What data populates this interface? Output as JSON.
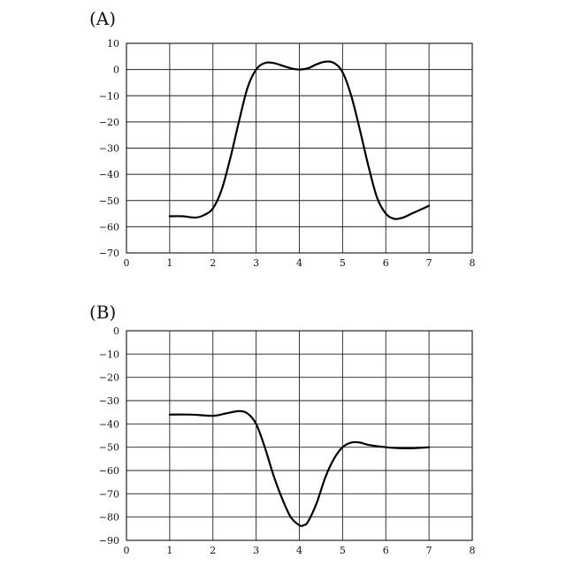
{
  "chart_data": [
    {
      "type": "line",
      "panel_label": "(A)",
      "xlim": [
        0,
        8
      ],
      "ylim": [
        -70,
        10
      ],
      "x_ticks": [
        0,
        1,
        2,
        3,
        4,
        5,
        6,
        7,
        8
      ],
      "y_ticks": [
        10,
        0,
        -10,
        -20,
        -30,
        -40,
        -50,
        -60,
        -70
      ],
      "grid": true,
      "series": [
        {
          "x": [
            1.0,
            1.3,
            1.6,
            1.8,
            2.0,
            2.2,
            2.4,
            2.6,
            2.8,
            3.0,
            3.2,
            3.4,
            3.6,
            3.8,
            4.0,
            4.2,
            4.4,
            4.6,
            4.8,
            5.0,
            5.2,
            5.4,
            5.6,
            5.8,
            6.0,
            6.2,
            6.4,
            6.6,
            6.8,
            7.0
          ],
          "y": [
            -56,
            -56,
            -56.5,
            -55.5,
            -53,
            -46,
            -34,
            -20,
            -7,
            0,
            2.5,
            2.5,
            1.5,
            0.5,
            0,
            0.5,
            2,
            3,
            2.5,
            -1,
            -10,
            -23,
            -37,
            -49,
            -55,
            -57,
            -56.5,
            -55,
            -53.5,
            -52
          ]
        }
      ]
    },
    {
      "type": "line",
      "panel_label": "(B)",
      "xlim": [
        0,
        8
      ],
      "ylim": [
        -90,
        0
      ],
      "x_ticks": [
        0,
        1,
        2,
        3,
        4,
        5,
        6,
        7,
        8
      ],
      "y_ticks": [
        0,
        -10,
        -20,
        -30,
        -40,
        -50,
        -60,
        -70,
        -80,
        -90
      ],
      "grid": true,
      "series": [
        {
          "x": [
            1.0,
            1.5,
            2.0,
            2.3,
            2.6,
            2.8,
            3.0,
            3.2,
            3.4,
            3.6,
            3.8,
            4.0,
            4.1,
            4.2,
            4.4,
            4.6,
            4.8,
            5.0,
            5.2,
            5.4,
            5.6,
            6.0,
            6.5,
            7.0
          ],
          "y": [
            -36,
            -36,
            -36.5,
            -35.5,
            -34.5,
            -35.5,
            -40,
            -50,
            -62,
            -72,
            -80,
            -83.5,
            -83.5,
            -82,
            -74,
            -63,
            -55,
            -50,
            -48,
            -48,
            -49,
            -50,
            -50.5,
            -50
          ]
        }
      ]
    }
  ]
}
